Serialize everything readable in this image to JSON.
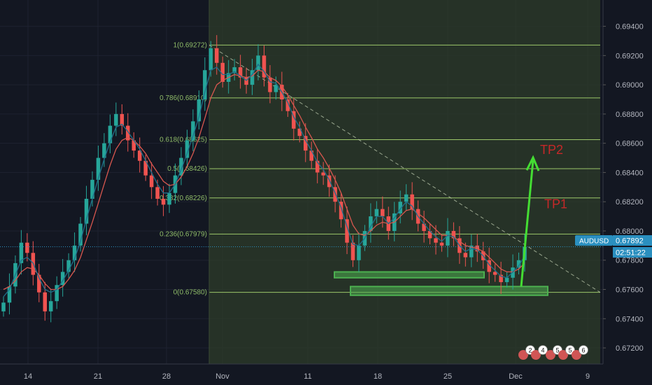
{
  "chart_data": {
    "type": "candlestick",
    "symbol": "AUDUSD",
    "last_price": "0.67892",
    "countdown": "02:51:22",
    "ylim": [
      0.6709,
      0.6958
    ],
    "y_ticks": [
      "0.69400",
      "0.69200",
      "0.69000",
      "0.68800",
      "0.68600",
      "0.68400",
      "0.68200",
      "0.68000",
      "0.67800",
      "0.67600",
      "0.67400",
      "0.67200"
    ],
    "x_ticks": [
      "14",
      "21",
      "28",
      "Nov",
      "11",
      "18",
      "25",
      "Dec",
      "9"
    ],
    "fib_levels": [
      {
        "label": "1(0.69272)",
        "value": 0.69272
      },
      {
        "label": "0.786(0.68910)",
        "value": 0.6891
      },
      {
        "label": "0.618(0.68625)",
        "value": 0.68625
      },
      {
        "label": "0.5(0.68426)",
        "value": 0.68426
      },
      {
        "label": "0.382(0.68226)",
        "value": 0.68226
      },
      {
        "label": "0.236(0.67979)",
        "value": 0.67979
      },
      {
        "label": "0(0.67580)",
        "value": 0.6758
      }
    ],
    "targets": [
      {
        "label": "TP1",
        "value": 0.6818
      },
      {
        "label": "TP2",
        "value": 0.6855
      }
    ],
    "support_zones": [
      {
        "low": 0.6768,
        "high": 0.6772
      },
      {
        "low": 0.6756,
        "high": 0.6762
      }
    ],
    "trendline": {
      "start": 0.69272,
      "end": 0.6758
    },
    "closes": [
      0.6751,
      0.6762,
      0.6778,
      0.6792,
      0.6785,
      0.677,
      0.6758,
      0.6745,
      0.6752,
      0.6763,
      0.6772,
      0.678,
      0.679,
      0.6805,
      0.6822,
      0.6835,
      0.685,
      0.686,
      0.6872,
      0.688,
      0.6872,
      0.6862,
      0.6855,
      0.6848,
      0.6838,
      0.683,
      0.6822,
      0.6818,
      0.6826,
      0.6838,
      0.685,
      0.6862,
      0.6875,
      0.689,
      0.691,
      0.6925,
      0.6915,
      0.6902,
      0.6908,
      0.6912,
      0.6905,
      0.69,
      0.691,
      0.692,
      0.6905,
      0.6895,
      0.69,
      0.689,
      0.6882,
      0.687,
      0.6865,
      0.6855,
      0.6848,
      0.684,
      0.6838,
      0.683,
      0.682,
      0.6808,
      0.6792,
      0.678,
      0.679,
      0.68,
      0.681,
      0.6815,
      0.681,
      0.68,
      0.6812,
      0.682,
      0.6825,
      0.6815,
      0.6805,
      0.68,
      0.6795,
      0.6792,
      0.679,
      0.68,
      0.6795,
      0.6785,
      0.6782,
      0.679,
      0.6786,
      0.678,
      0.6772,
      0.677,
      0.6765,
      0.6768,
      0.6775,
      0.678,
      0.6789
    ],
    "dark_indicator": [
      0.6755,
      0.676,
      0.677,
      0.678,
      0.6782,
      0.6778,
      0.6768,
      0.676,
      0.6758,
      0.676,
      0.6766,
      0.6773,
      0.6781,
      0.6793,
      0.6808,
      0.6822,
      0.6836,
      0.6849,
      0.6861,
      0.6871,
      0.6873,
      0.6868,
      0.6862,
      0.6856,
      0.6848,
      0.684,
      0.6832,
      0.6826,
      0.6826,
      0.6832,
      0.6842,
      0.6853,
      0.6865,
      0.6878,
      0.6895,
      0.691,
      0.6912,
      0.6907,
      0.6907,
      0.6909,
      0.6906,
      0.6903,
      0.6907,
      0.6914,
      0.6909,
      0.6902,
      0.6901,
      0.6895,
      0.6888,
      0.6878,
      0.6871,
      0.6862,
      0.6855,
      0.6847,
      0.6842,
      0.6835,
      0.6826,
      0.6816,
      0.6803,
      0.6791,
      0.679,
      0.6795,
      0.6803,
      0.681,
      0.681,
      0.6805,
      0.6809,
      0.6815,
      0.682,
      0.6817,
      0.681,
      0.6805,
      0.68,
      0.6796,
      0.6793,
      0.6797,
      0.6796,
      0.679,
      0.6786,
      0.6788,
      0.6787,
      0.6783,
      0.6777,
      0.6773,
      0.6769,
      0.6768,
      0.6772,
      0.6776,
      0.6783
    ],
    "red_indicator": [
      0.676,
      0.6762,
      0.6766,
      0.6772,
      0.6775,
      0.6774,
      0.677,
      0.6764,
      0.676,
      0.676,
      0.6762,
      0.6767,
      0.6773,
      0.6782,
      0.6794,
      0.6806,
      0.6819,
      0.6832,
      0.6845,
      0.6856,
      0.6862,
      0.6864,
      0.6862,
      0.6858,
      0.6853,
      0.6846,
      0.684,
      0.6834,
      0.6831,
      0.6832,
      0.6837,
      0.6844,
      0.6853,
      0.6864,
      0.6877,
      0.6891,
      0.69,
      0.6903,
      0.6905,
      0.6907,
      0.6906,
      0.6905,
      0.6906,
      0.691,
      0.6909,
      0.6905,
      0.6903,
      0.6899,
      0.6893,
      0.6886,
      0.6879,
      0.6871,
      0.6864,
      0.6856,
      0.685,
      0.6843,
      0.6835,
      0.6826,
      0.6815,
      0.6804,
      0.6798,
      0.6797,
      0.68,
      0.6804,
      0.6806,
      0.6805,
      0.6806,
      0.681,
      0.6814,
      0.6815,
      0.6812,
      0.6809,
      0.6805,
      0.6801,
      0.6797,
      0.6797,
      0.6796,
      0.6793,
      0.679,
      0.6789,
      0.6788,
      0.6786,
      0.6782,
      0.6778,
      0.6774,
      0.6772,
      0.6772,
      0.6774,
      0.6778
    ],
    "events": [
      "2",
      "4",
      "5",
      "5",
      "6"
    ]
  },
  "colors": {
    "background": "#131722",
    "shaded_region": "#2e3c2a",
    "fib_line": "#9cc76a",
    "candle_up": "#26a69a",
    "candle_down": "#ef5350",
    "indicator_dark": "#1f6f8b",
    "indicator_red": "#d8574f",
    "zone": "#4caf50",
    "target_arrow": "#44dd33",
    "target_text": "#c62828",
    "price_tag": "#2a8fbf"
  }
}
